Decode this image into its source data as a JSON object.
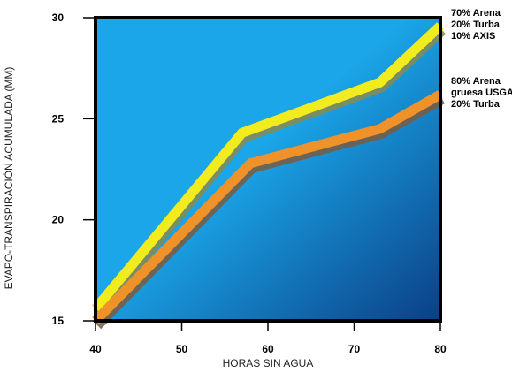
{
  "chart_data": {
    "type": "line",
    "xlabel": "HORAS SIN AGUA",
    "ylabel": "EVAPO-TRANSPIRACIÓN ACUMULADA (MM)",
    "xlim": [
      40,
      80
    ],
    "ylim": [
      15,
      30
    ],
    "x_ticks": [
      "40",
      "50",
      "60",
      "70",
      "80"
    ],
    "y_ticks": [
      "15",
      "20",
      "25",
      "30"
    ],
    "grid": false,
    "legend_position": "right",
    "series": [
      {
        "name_lines": [
          "70% Arena",
          "20% Turba",
          "10% AXIS"
        ],
        "color": "#f2ec1f",
        "shadow_color": "#8a8a50",
        "x": [
          40,
          57,
          73,
          80
        ],
        "y": [
          15.6,
          24.3,
          26.8,
          29.6
        ]
      },
      {
        "name_lines": [
          "80% Arena",
          "gruesa USGA",
          "20% Turba"
        ],
        "color": "#f0922a",
        "shadow_color": "#7a5a40",
        "x": [
          40,
          58,
          73,
          80
        ],
        "y": [
          15.0,
          22.8,
          24.5,
          26.2
        ]
      }
    ],
    "colors": {
      "plot_bg_light": "#1aa6e8",
      "plot_bg_dark": "#0b3f86",
      "frame": "#000000"
    }
  }
}
